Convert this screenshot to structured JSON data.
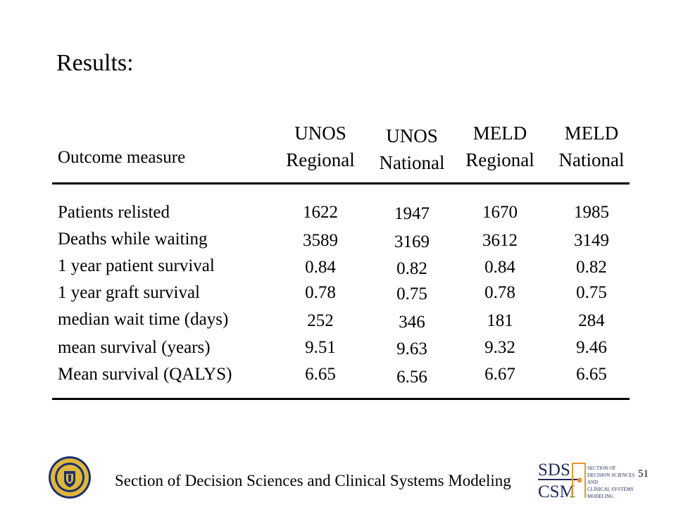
{
  "slide": {
    "title": "Results:",
    "page_number": "51",
    "footer": "Section of Decision Sciences and Clinical Systems Modeling"
  },
  "table": {
    "row_header": "Outcome measure",
    "columns": [
      {
        "line1": "UNOS",
        "line2": "Regional"
      },
      {
        "line1": "UNOS",
        "line2": "National"
      },
      {
        "line1": "MELD",
        "line2": "Regional"
      },
      {
        "line1": "MELD",
        "line2": "National"
      }
    ],
    "rows": [
      {
        "label": "Patients relisted",
        "values": [
          "1622",
          "1947",
          "1670",
          "1985"
        ]
      },
      {
        "label": "Deaths while waiting",
        "values": [
          "3589",
          "3169",
          "3612",
          "3149"
        ]
      },
      {
        "label": "1 year patient survival",
        "values": [
          "0.84",
          "0.82",
          "0.84",
          "0.82"
        ]
      },
      {
        "label": "1 year graft survival",
        "values": [
          "0.78",
          "0.75",
          "0.78",
          "0.75"
        ]
      },
      {
        "label": "median wait time (days)",
        "values": [
          "252",
          "346",
          "181",
          "284"
        ]
      },
      {
        "label": "mean survival  (years)",
        "values": [
          "9.51",
          "9.63",
          "9.32",
          "9.46"
        ]
      },
      {
        "label": "Mean survival  (QALYS)",
        "values": [
          "6.65",
          "6.56",
          "6.67",
          "6.65"
        ]
      }
    ]
  },
  "logos": {
    "seal_icon": "university-seal-icon",
    "sds_csm_icon": "sds-csm-logo-icon",
    "sds_text": "SDS",
    "csm_text": "CSM",
    "sds_lines": [
      "SECTION OF",
      "DECISION SCIENCES",
      "AND",
      "CLINICAL SYSTEMS",
      "MODELING"
    ]
  },
  "colors": {
    "text": "#000000",
    "seal_gold": "#e0b73a",
    "seal_blue": "#1c2f6e",
    "logo_navy": "#1f2a5c",
    "logo_orange": "#e8962f"
  }
}
